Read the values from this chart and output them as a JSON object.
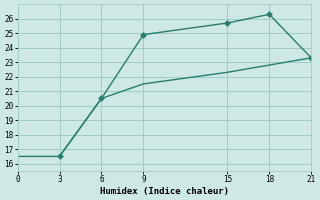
{
  "line1_x": [
    3,
    6,
    9,
    15,
    18,
    21
  ],
  "line1_y": [
    16.5,
    20.5,
    24.9,
    25.7,
    26.3,
    23.3
  ],
  "line2_x": [
    0,
    3,
    6,
    9,
    15,
    18,
    21
  ],
  "line2_y": [
    16.5,
    16.5,
    20.5,
    21.5,
    22.3,
    22.8,
    23.3
  ],
  "line_color": "#2a7d6e",
  "bg_color": "#cde8e5",
  "grid_color": "#9eccc8",
  "xlabel": "Humidex (Indice chaleur)",
  "xlim": [
    0,
    21
  ],
  "ylim": [
    15.5,
    27
  ],
  "xticks": [
    0,
    3,
    6,
    9,
    15,
    18,
    21
  ],
  "yticks": [
    16,
    17,
    18,
    19,
    20,
    21,
    22,
    23,
    24,
    25,
    26
  ],
  "marker": "D",
  "markersize": 3,
  "linewidth": 1.0,
  "tick_fontsize": 5.5,
  "xlabel_fontsize": 6.5
}
